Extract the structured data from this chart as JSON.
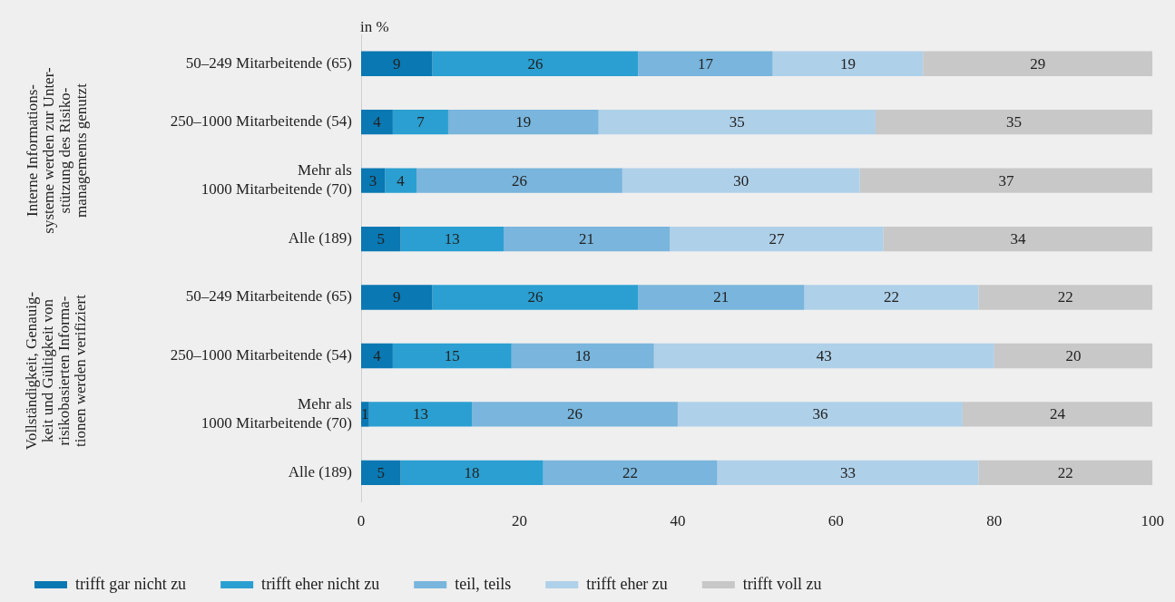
{
  "chart_data": {
    "type": "bar",
    "orientation": "horizontal",
    "stacked": true,
    "xlabel": "in %",
    "categories": [
      "50–249 Mitarbeitende (65)",
      "250–1000 Mitarbeitende (54)",
      "Mehr als\n1000 Mitarbeitende (70)",
      "Alle (189)",
      "50–249 Mitarbeitende (65)",
      "250–1000 Mitarbeitende (54)",
      "Mehr als\n1000 Mitarbeitende (70)",
      "Alle (189)"
    ],
    "series": [
      {
        "name": "trifft gar nicht zu",
        "color": "#0a78b2",
        "values": [
          9,
          4,
          3,
          5,
          9,
          4,
          1,
          5
        ]
      },
      {
        "name": "trifft eher nicht zu",
        "color": "#2b9fd1",
        "values": [
          26,
          7,
          4,
          13,
          26,
          15,
          13,
          18
        ]
      },
      {
        "name": "teil, teils",
        "color": "#79b5dc",
        "values": [
          17,
          19,
          26,
          21,
          21,
          18,
          26,
          22
        ]
      },
      {
        "name": "trifft eher zu",
        "color": "#afd0e9",
        "values": [
          19,
          35,
          30,
          27,
          22,
          43,
          36,
          33
        ]
      },
      {
        "name": "trifft voll zu",
        "color": "#c8c8c8",
        "values": [
          29,
          35,
          37,
          34,
          22,
          20,
          24,
          22
        ]
      }
    ],
    "xlim": [
      0,
      100
    ],
    "xticks": [
      0,
      20,
      40,
      60,
      80,
      100
    ],
    "data_labels": true,
    "grid": false,
    "legend": "bottom",
    "annotations": [
      "Interne Informations-\nsysteme werden zur Unter-\nstützung des Risiko-\nmanagements genutzt",
      "Vollständigkeit, Genauig-\nkeit und Gültigkeit von\nrisikobasierten Informa-\ntionen werden verifiziert"
    ]
  }
}
